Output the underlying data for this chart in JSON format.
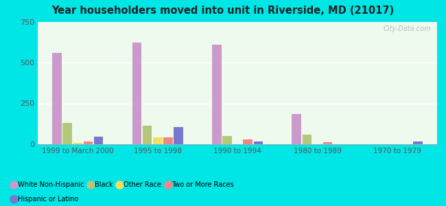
{
  "title": "Year householders moved into unit in Riverside, MD (21017)",
  "categories": [
    "1999 to March 2000",
    "1995 to 1998",
    "1990 to 1994",
    "1980 to 1989",
    "1970 to 1979"
  ],
  "series": {
    "White Non-Hispanic": [
      560,
      620,
      610,
      185,
      0
    ],
    "Black": [
      130,
      115,
      50,
      60,
      0
    ],
    "Other Race": [
      10,
      40,
      0,
      0,
      0
    ],
    "Two or More Races": [
      18,
      42,
      30,
      12,
      0
    ],
    "Hispanic or Latino": [
      45,
      105,
      18,
      0,
      15
    ]
  },
  "colors": {
    "White Non-Hispanic": "#cc99cc",
    "Black": "#b5c77a",
    "Other Race": "#f0e060",
    "Two or More Races": "#f08888",
    "Hispanic or Latino": "#7777cc"
  },
  "ylim": [
    0,
    750
  ],
  "yticks": [
    0,
    250,
    500,
    750
  ],
  "background_color": "#edfaed",
  "outer_background": "#00e5e5",
  "bar_width": 0.13,
  "watermark": "City-Data.com"
}
